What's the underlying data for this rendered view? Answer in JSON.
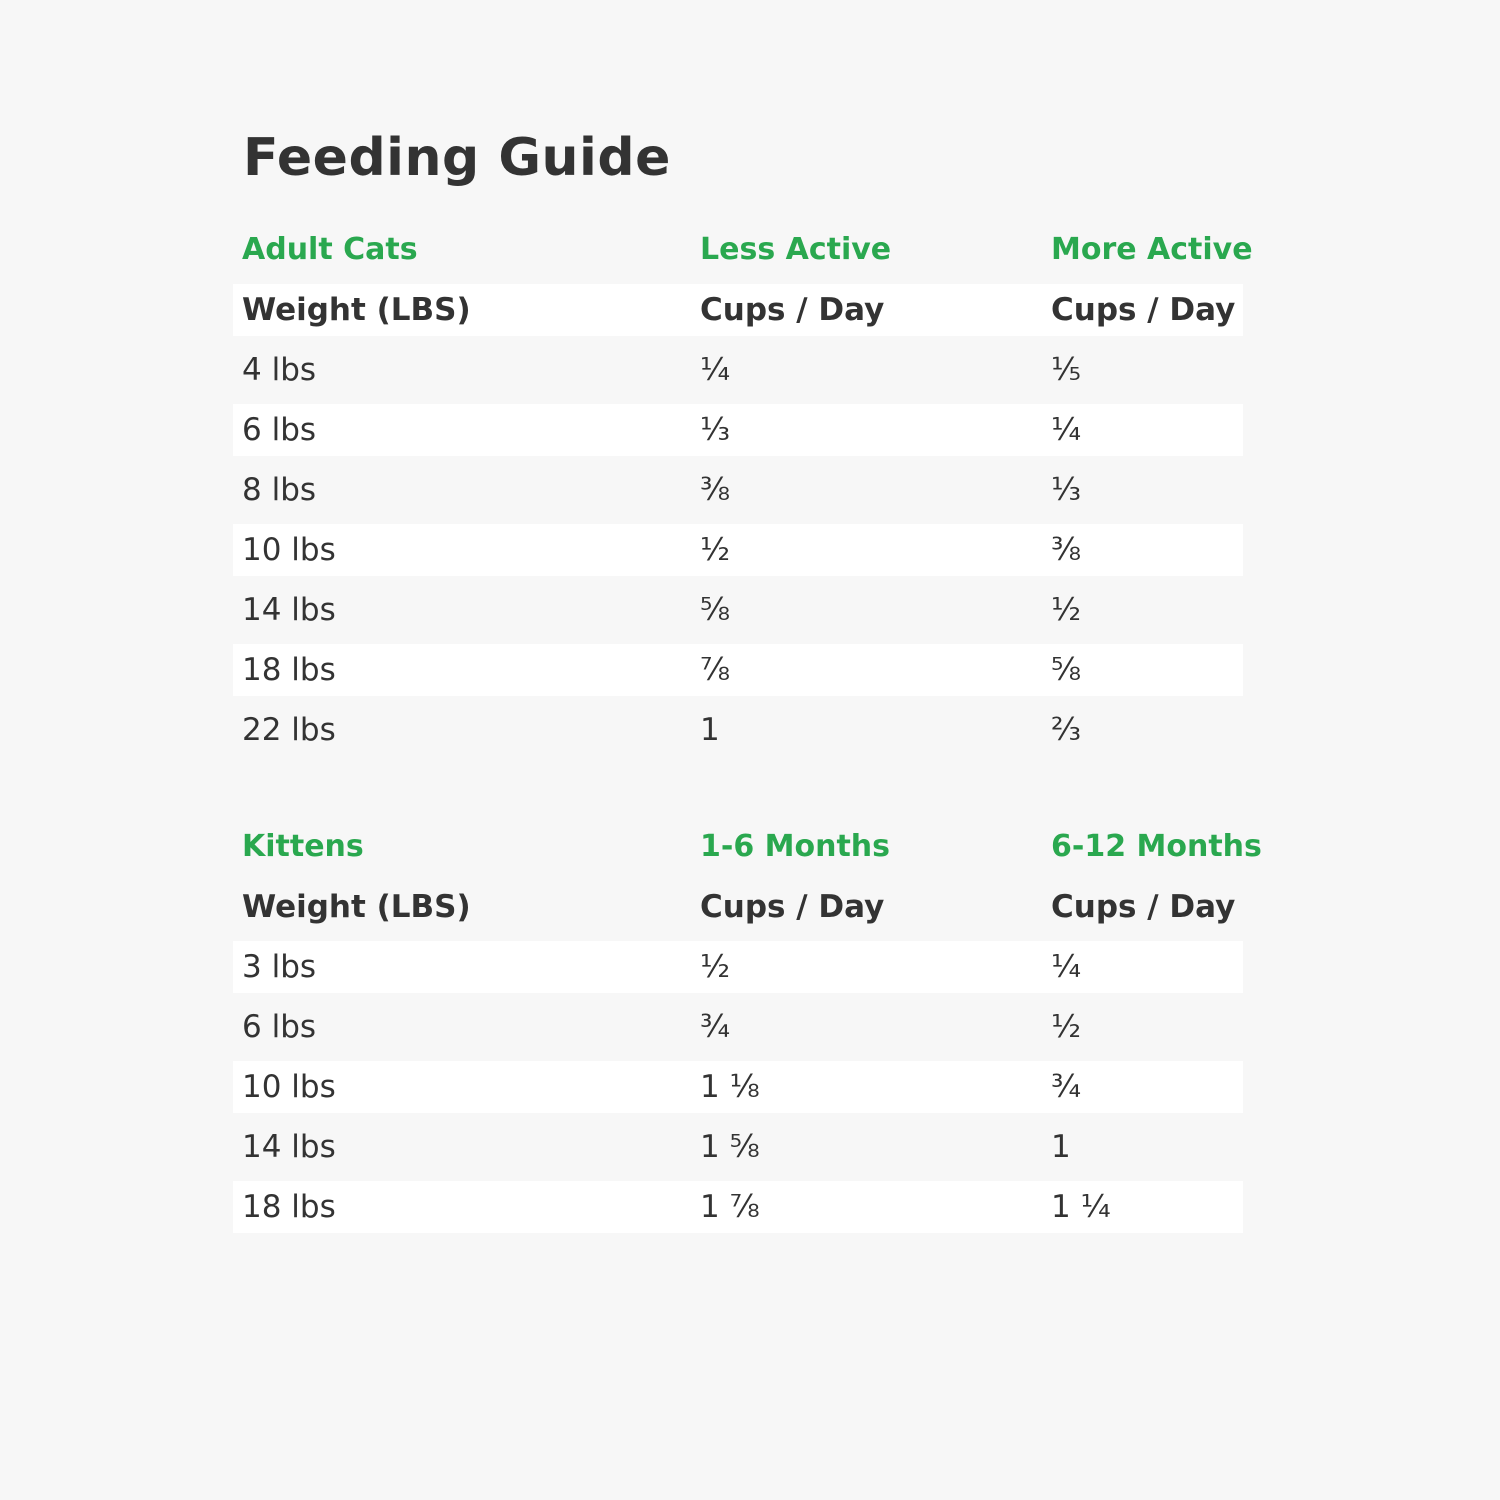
{
  "title": "Feeding Guide",
  "colors": {
    "accent": "#2aa84f",
    "text": "#333333",
    "background": "#f7f7f7"
  },
  "adult": {
    "group": [
      "Adult Cats",
      "Less Active",
      "More Active"
    ],
    "header": [
      "Weight (LBS)",
      "Cups / Day",
      "Cups / Day"
    ],
    "rows": [
      [
        "4 lbs",
        "¼",
        "⅕"
      ],
      [
        "6 lbs",
        "⅓",
        "¼"
      ],
      [
        "8 lbs",
        "⅜",
        "⅓"
      ],
      [
        "10 lbs",
        "½",
        "⅜"
      ],
      [
        "14 lbs",
        "⅝",
        "½"
      ],
      [
        "18 lbs",
        "⅞",
        "⅝"
      ],
      [
        "22 lbs",
        "1",
        "⅔"
      ]
    ]
  },
  "kittens": {
    "group": [
      "Kittens",
      "1-6 Months",
      "6-12 Months"
    ],
    "header": [
      "Weight (LBS)",
      "Cups / Day",
      "Cups / Day"
    ],
    "rows": [
      [
        "3 lbs",
        "½",
        "¼"
      ],
      [
        "6 lbs",
        "¾",
        "½"
      ],
      [
        "10 lbs",
        "1 ⅛",
        "¾"
      ],
      [
        "14 lbs",
        "1 ⅝",
        "1"
      ],
      [
        "18 lbs",
        "1 ⅞",
        "1 ¼"
      ]
    ]
  }
}
